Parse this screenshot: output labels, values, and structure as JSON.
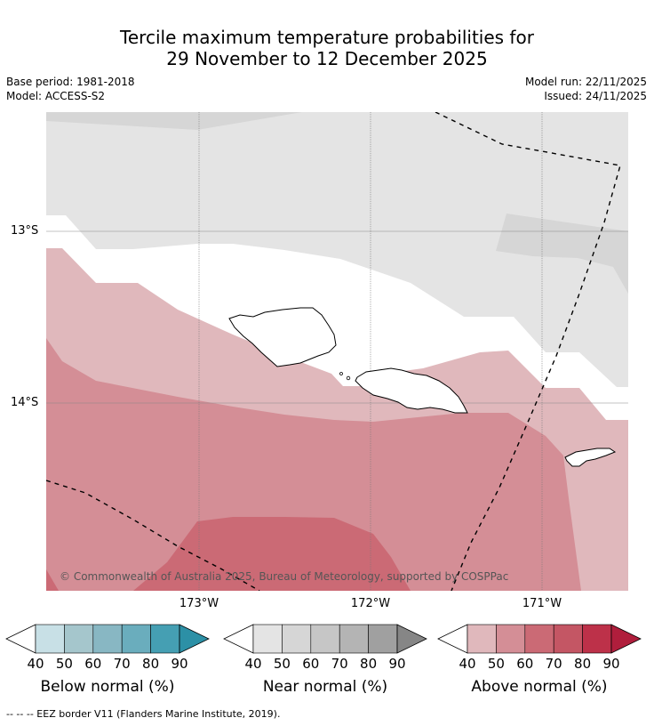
{
  "title": {
    "line1": "Tercile maximum temperature probabilities for",
    "line2": "29 November to 12 December 2025"
  },
  "meta": {
    "base_period": "Base period: 1981-2018",
    "model": "Model: ACCESS-S2",
    "model_run": "Model run: 22/11/2025",
    "issued": "Issued: 24/11/2025"
  },
  "map": {
    "lat_labels": [
      "13°S",
      "14°S"
    ],
    "lon_labels": [
      "173°W",
      "172°W",
      "171°W"
    ],
    "copyright": "© Commonwealth of Australia 2025, Bureau of Meteorology, supported by COSPPac",
    "colors": {
      "near_40": "#e4e4e4",
      "near_50": "#d6d6d6",
      "above_40": "#e0b8bc",
      "above_50": "#d48e96",
      "above_60": "#cb6a75"
    }
  },
  "legends": [
    {
      "label": "Below normal (%)",
      "ticks": [
        "40",
        "50",
        "60",
        "70",
        "80",
        "90"
      ],
      "colors": [
        "#c8e0e6",
        "#a5c6cc",
        "#88b7c3",
        "#6aadbd",
        "#459fb3",
        "#2c90a6"
      ]
    },
    {
      "label": "Near normal (%)",
      "ticks": [
        "40",
        "50",
        "60",
        "70",
        "80",
        "90"
      ],
      "colors": [
        "#e4e4e4",
        "#d6d6d6",
        "#c6c6c6",
        "#b4b4b4",
        "#a0a0a0",
        "#868686"
      ]
    },
    {
      "label": "Above normal (%)",
      "ticks": [
        "40",
        "50",
        "60",
        "70",
        "80",
        "90"
      ],
      "colors": [
        "#e0b8bc",
        "#d48e96",
        "#cb6a75",
        "#c45664",
        "#bd3149",
        "#b01e3c"
      ]
    }
  ],
  "footer": "--  --  -- EEZ border V11 (Flanders Marine Institute, 2019)."
}
